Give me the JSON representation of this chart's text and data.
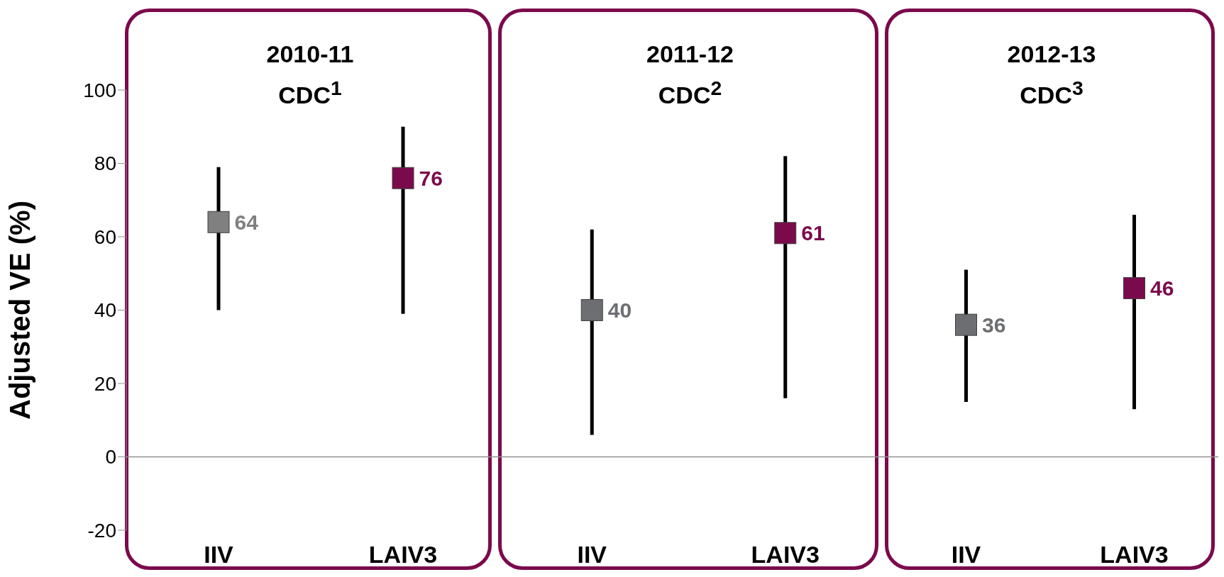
{
  "chart_data": [
    {
      "type": "scatter",
      "title": "2010-11\nCDC$^{1}$",
      "ylabel": "Adjusted VE (%)",
      "categories": [
        "IIV",
        "LAIV3"
      ],
      "values": [
        64,
        76
      ],
      "colors": [
        "#808080",
        "#7b0a4c"
      ],
      "errors": [
        [
          40,
          79
        ],
        [
          39,
          90
        ]
      ],
      "marker": "square",
      "data_labels": true,
      "ylim": [
        -20,
        100
      ],
      "yticks": [
        -20,
        0,
        20,
        40,
        60,
        80,
        100
      ],
      "ref_lines": [
        {
          "axis": "y",
          "value": 0,
          "color": "#909090"
        }
      ]
    },
    {
      "type": "scatter",
      "title": "2011-12\nCDC$^{2}$",
      "categories": [
        "IIV",
        "LAIV3"
      ],
      "values": [
        40,
        61
      ],
      "colors": [
        "#6d6e71",
        "#7b0a4c"
      ],
      "errors": [
        [
          6,
          62
        ],
        [
          16,
          82
        ]
      ],
      "marker": "square",
      "data_labels": true,
      "ylim": [
        -20,
        100
      ],
      "yticks": [
        -20,
        0,
        20,
        40,
        60,
        80,
        100
      ],
      "tick_labels": "x",
      "ref_lines": [
        {
          "axis": "y",
          "value": 0,
          "color": "#909090"
        }
      ]
    },
    {
      "type": "scatter",
      "title": "2012-13\nCDC$^{3}$",
      "categories": [
        "IIV",
        "LAIV3"
      ],
      "values": [
        36,
        46
      ],
      "colors": [
        "#6d6e71",
        "#7b0a4c"
      ],
      "errors": [
        [
          15,
          51
        ],
        [
          13,
          66
        ]
      ],
      "marker": "square",
      "data_labels": true,
      "ylim": [
        -20,
        100
      ],
      "yticks": [
        -20,
        0,
        20,
        40,
        60,
        80,
        100
      ],
      "tick_labels": "x",
      "ref_lines": [
        {
          "axis": "y",
          "value": 0,
          "color": "#909090"
        }
      ]
    }
  ]
}
